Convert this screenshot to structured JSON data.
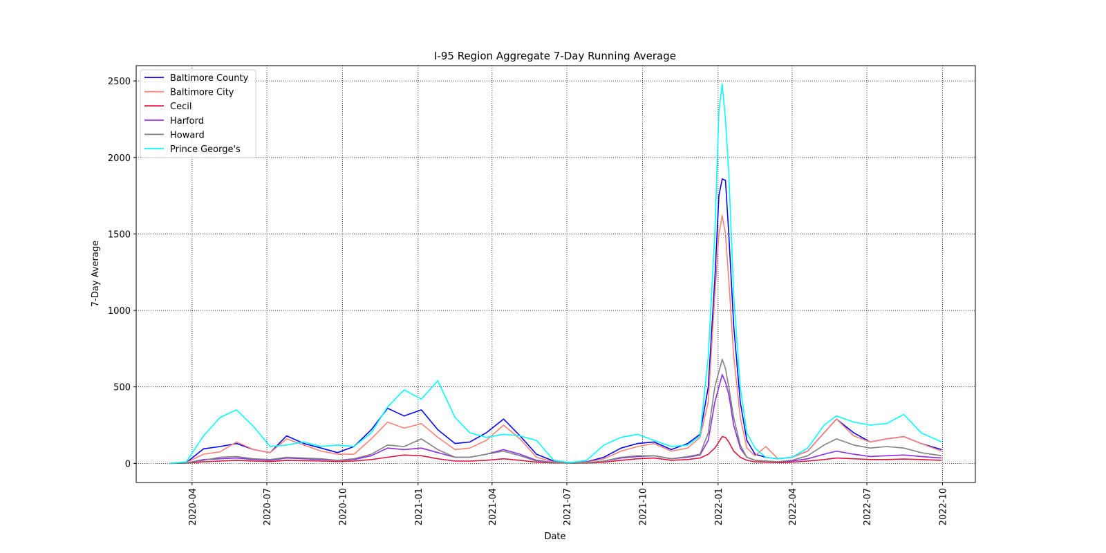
{
  "chart_data": {
    "type": "line",
    "title": "I-95 Region Aggregate 7-Day Running Average",
    "xlabel": "Date",
    "ylabel": "7-Day Average",
    "x_ticks": [
      "2020-04",
      "2020-07",
      "2020-10",
      "2021-01",
      "2021-04",
      "2021-07",
      "2021-10",
      "2022-01",
      "2022-04",
      "2022-07",
      "2022-10"
    ],
    "y_ticks": [
      "0",
      "500",
      "1000",
      "1500",
      "2000",
      "2500"
    ],
    "xlim": [
      "2020-01-24",
      "2022-11-10"
    ],
    "ylim": [
      -125,
      2600
    ],
    "grid": true,
    "legend_position": "upper-left",
    "x": [
      "2020-03-05",
      "2020-03-25",
      "2020-04-15",
      "2020-05-05",
      "2020-05-25",
      "2020-06-15",
      "2020-07-05",
      "2020-07-25",
      "2020-08-15",
      "2020-09-05",
      "2020-09-25",
      "2020-10-15",
      "2020-11-05",
      "2020-11-25",
      "2020-12-15",
      "2021-01-05",
      "2021-01-25",
      "2021-02-15",
      "2021-03-05",
      "2021-03-25",
      "2021-04-15",
      "2021-05-05",
      "2021-05-25",
      "2021-06-15",
      "2021-07-05",
      "2021-07-25",
      "2021-08-15",
      "2021-09-05",
      "2021-09-25",
      "2021-10-15",
      "2021-11-05",
      "2021-11-25",
      "2021-12-10",
      "2021-12-20",
      "2021-12-28",
      "2022-01-02",
      "2022-01-06",
      "2022-01-10",
      "2022-01-14",
      "2022-01-20",
      "2022-01-28",
      "2022-02-05",
      "2022-02-15",
      "2022-02-28",
      "2022-03-15",
      "2022-04-01",
      "2022-04-20",
      "2022-05-10",
      "2022-05-25",
      "2022-06-15",
      "2022-07-05",
      "2022-07-25",
      "2022-08-15",
      "2022-09-05",
      "2022-09-30"
    ],
    "series": [
      {
        "name": "Baltimore County",
        "color": "#0000ff",
        "values": [
          0,
          5,
          95,
          110,
          130,
          90,
          70,
          180,
          130,
          100,
          70,
          110,
          220,
          360,
          310,
          350,
          220,
          130,
          140,
          200,
          290,
          180,
          60,
          15,
          5,
          10,
          40,
          100,
          130,
          140,
          90,
          130,
          190,
          500,
          1200,
          1750,
          1860,
          1850,
          1500,
          900,
          400,
          150,
          60,
          40,
          30,
          40,
          80,
          200,
          290,
          200,
          140,
          160,
          175,
          130,
          90
        ]
      },
      {
        "name": "Baltimore City",
        "color": "#fa8072",
        "values": [
          0,
          5,
          60,
          75,
          140,
          90,
          70,
          160,
          120,
          80,
          60,
          60,
          160,
          270,
          230,
          260,
          170,
          90,
          100,
          150,
          250,
          160,
          40,
          10,
          5,
          8,
          30,
          80,
          110,
          130,
          80,
          100,
          170,
          400,
          1100,
          1500,
          1620,
          1500,
          1200,
          700,
          300,
          100,
          50,
          110,
          30,
          40,
          80,
          200,
          290,
          180,
          140,
          160,
          175,
          130,
          80
        ]
      },
      {
        "name": "Cecil",
        "color": "#dc143c",
        "values": [
          0,
          2,
          10,
          15,
          20,
          15,
          12,
          20,
          18,
          15,
          12,
          15,
          25,
          40,
          55,
          50,
          30,
          15,
          15,
          20,
          30,
          20,
          8,
          3,
          2,
          2,
          8,
          20,
          30,
          35,
          20,
          25,
          35,
          60,
          100,
          140,
          175,
          170,
          140,
          80,
          40,
          20,
          10,
          8,
          5,
          8,
          15,
          25,
          35,
          30,
          25,
          25,
          28,
          25,
          20
        ]
      },
      {
        "name": "Harford",
        "color": "#8a2be2",
        "values": [
          0,
          2,
          25,
          30,
          35,
          25,
          20,
          35,
          30,
          25,
          20,
          25,
          50,
          100,
          90,
          100,
          70,
          40,
          40,
          60,
          90,
          60,
          20,
          5,
          2,
          3,
          15,
          35,
          45,
          50,
          30,
          40,
          55,
          150,
          400,
          500,
          580,
          530,
          450,
          250,
          100,
          40,
          20,
          15,
          10,
          15,
          30,
          60,
          80,
          60,
          45,
          50,
          55,
          45,
          35
        ]
      },
      {
        "name": "Howard",
        "color": "#808080",
        "values": [
          0,
          3,
          20,
          40,
          45,
          30,
          25,
          40,
          35,
          30,
          20,
          30,
          60,
          120,
          110,
          160,
          90,
          40,
          40,
          60,
          80,
          50,
          15,
          5,
          2,
          3,
          15,
          40,
          50,
          50,
          30,
          45,
          60,
          200,
          500,
          600,
          680,
          620,
          500,
          300,
          120,
          40,
          20,
          15,
          10,
          20,
          50,
          120,
          160,
          120,
          100,
          110,
          100,
          70,
          50
        ]
      },
      {
        "name": "Prince George's",
        "color": "#00ffff",
        "values": [
          0,
          10,
          180,
          300,
          350,
          240,
          110,
          120,
          140,
          110,
          120,
          110,
          200,
          370,
          480,
          420,
          540,
          300,
          200,
          170,
          190,
          180,
          150,
          20,
          5,
          20,
          120,
          170,
          190,
          150,
          110,
          120,
          180,
          700,
          1500,
          2300,
          2480,
          2250,
          1900,
          1100,
          500,
          200,
          100,
          40,
          30,
          40,
          100,
          250,
          310,
          270,
          250,
          260,
          320,
          200,
          140
        ]
      }
    ]
  }
}
